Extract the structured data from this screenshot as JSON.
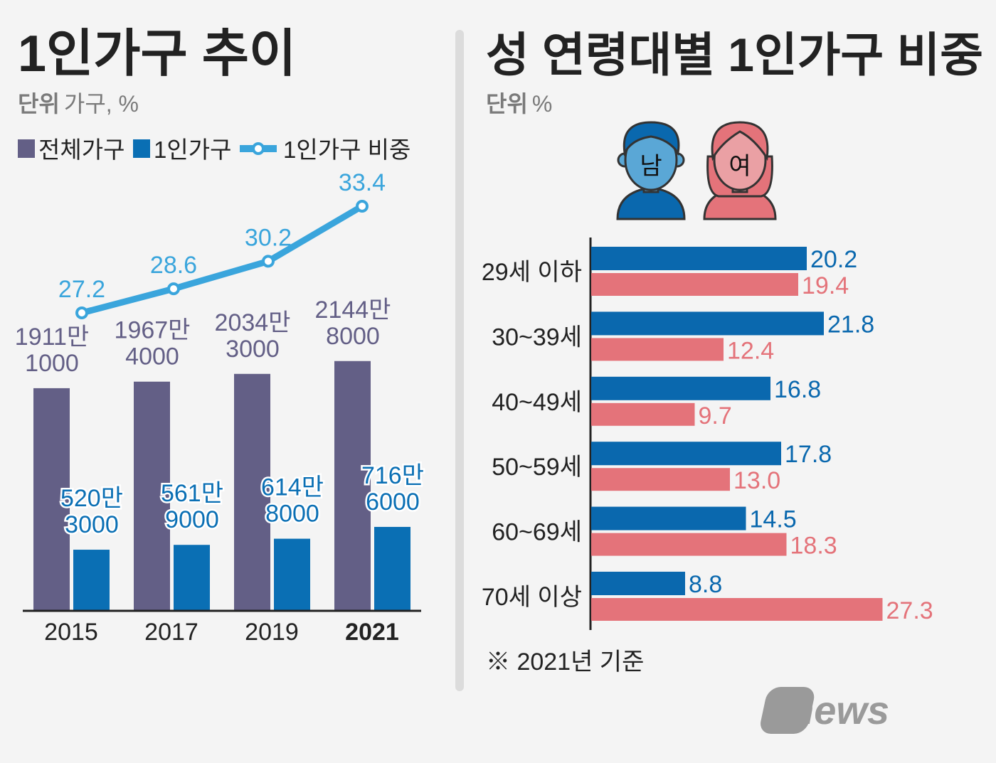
{
  "colors": {
    "total": "#635f86",
    "single": "#0a6fb4",
    "ratio": "#3aa5dc",
    "male": "#0a68ae",
    "female": "#e4737a",
    "text": "#222222",
    "muted": "#7a7a7a",
    "divider": "#dddddd"
  },
  "chart_data": [
    {
      "type": "bar",
      "title": "1인가구 추이",
      "unit_bold": "단위",
      "unit_text": "가구, %",
      "legend": [
        "전체가구",
        "1인가구",
        "1인가구 비중"
      ],
      "categories": [
        "2015",
        "2017",
        "2019",
        "2021"
      ],
      "highlight_category": "2021",
      "series": [
        {
          "name": "전체가구",
          "values": [
            19111000,
            19674000,
            20343000,
            21448000
          ],
          "labels": [
            [
              "1911만",
              "1000"
            ],
            [
              "1967만",
              "4000"
            ],
            [
              "2034만",
              "3000"
            ],
            [
              "2144만",
              "8000"
            ]
          ]
        },
        {
          "name": "1인가구",
          "values": [
            5203000,
            5619000,
            6148000,
            7166000
          ],
          "labels": [
            [
              "520만",
              "3000"
            ],
            [
              "561만",
              "9000"
            ],
            [
              "614만",
              "8000"
            ],
            [
              "716만",
              "6000"
            ]
          ]
        },
        {
          "name": "1인가구 비중",
          "type": "line",
          "values": [
            27.2,
            28.6,
            30.2,
            33.4
          ],
          "labels": [
            "27.2",
            "28.6",
            "30.2",
            "33.4"
          ]
        }
      ]
    },
    {
      "type": "bar",
      "orientation": "horizontal",
      "title": "성 연령대별 1인가구 비중",
      "unit_bold": "단위",
      "unit_text": "%",
      "legend": [
        "남",
        "여"
      ],
      "categories": [
        "29세 이하",
        "30~39세",
        "40~49세",
        "50~59세",
        "60~69세",
        "70세 이상"
      ],
      "series": [
        {
          "name": "남",
          "values": [
            20.2,
            21.8,
            16.8,
            17.8,
            14.5,
            8.8
          ],
          "labels": [
            "20.2",
            "21.8",
            "16.8",
            "17.8",
            "14.5",
            "8.8"
          ]
        },
        {
          "name": "여",
          "values": [
            19.4,
            12.4,
            9.7,
            13.0,
            18.3,
            27.3
          ],
          "labels": [
            "19.4",
            "12.4",
            "9.7",
            "13.0",
            "18.3",
            "27.3"
          ]
        }
      ],
      "note": "※ 2021년 기준"
    }
  ],
  "logo": "news1"
}
